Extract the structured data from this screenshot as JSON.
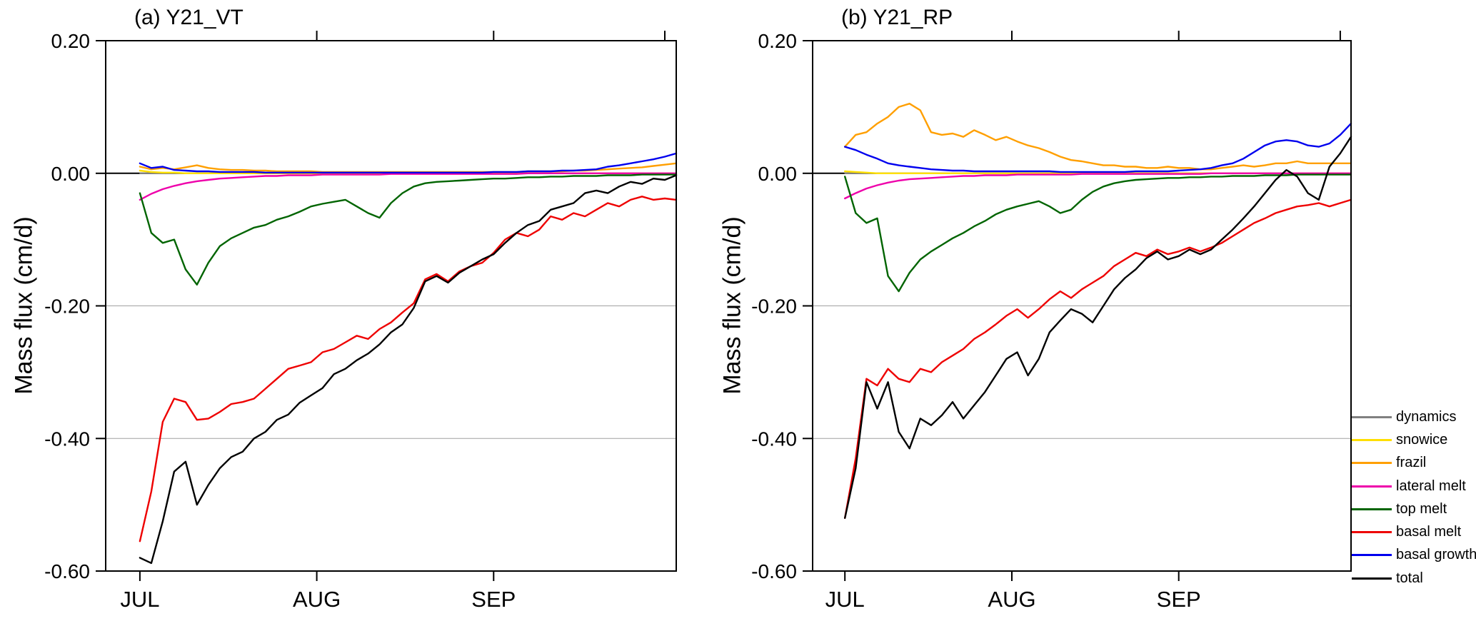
{
  "figure": {
    "background": "#ffffff",
    "legend_position": "right"
  },
  "legend": {
    "items": [
      {
        "label": "dynamics",
        "color": "#808080"
      },
      {
        "label": "snowice",
        "color": "#ffdf00"
      },
      {
        "label": "frazil",
        "color": "#ff9f00"
      },
      {
        "label": "lateral melt",
        "color": "#ee00aa"
      },
      {
        "label": "top melt",
        "color": "#006400"
      },
      {
        "label": "basal melt",
        "color": "#ee0000"
      },
      {
        "label": "basal growth",
        "color": "#0000ee"
      },
      {
        "label": "total",
        "color": "#000000"
      }
    ]
  },
  "chart_data": [
    {
      "type": "line",
      "title": "(a) Y21_VT",
      "ylabel": "Mass flux (cm/d)",
      "xlabel": "",
      "ylim": [
        -0.6,
        0.2
      ],
      "yticks": [
        0.2,
        0.0,
        -0.2,
        -0.4,
        -0.6
      ],
      "ytick_labels": [
        "0.20",
        "0.00",
        "-0.20",
        "-0.40",
        "-0.60"
      ],
      "xlim_days": [
        -6,
        94
      ],
      "xticks": [
        {
          "day": 0,
          "label": "JUL"
        },
        {
          "day": 31,
          "label": "AUG"
        },
        {
          "day": 62,
          "label": "SEP"
        }
      ],
      "top_ticks_days": [
        31,
        62,
        92
      ],
      "zero_line": true,
      "gridlines": [
        -0.2,
        -0.4
      ],
      "x_days": [
        0,
        2,
        4,
        6,
        8,
        10,
        12,
        14,
        16,
        18,
        20,
        22,
        24,
        26,
        28,
        30,
        32,
        34,
        36,
        38,
        40,
        42,
        44,
        46,
        48,
        50,
        52,
        54,
        56,
        58,
        60,
        62,
        64,
        66,
        68,
        70,
        72,
        74,
        76,
        78,
        80,
        82,
        84,
        86,
        88,
        90,
        92,
        94
      ],
      "series": [
        {
          "name": "dynamics",
          "values": [
            0.0,
            0.0,
            0.0,
            0.0,
            0.0,
            0.0,
            0.0,
            0.0,
            0.0,
            0.0,
            0.0,
            0.0,
            0.0,
            0.0,
            0.0,
            0.0,
            0.0,
            0.0,
            0.0,
            0.0,
            0.0,
            0.0,
            0.0,
            0.0,
            0.0,
            0.0,
            0.0,
            0.0,
            0.0,
            0.0,
            0.0,
            0.0,
            0.0,
            0.0,
            0.0,
            0.0,
            0.0,
            0.0,
            0.0,
            0.0,
            0.0,
            0.0,
            0.0,
            0.0,
            0.0,
            0.0,
            0.0,
            0.0
          ]
        },
        {
          "name": "snowice",
          "values": [
            0.004,
            0.002,
            0.001,
            0.001,
            0.0,
            0.0,
            0.0,
            0.0,
            0.0,
            0.0,
            0.0,
            0.0,
            0.0,
            0.0,
            0.0,
            0.0,
            0.0,
            0.0,
            0.0,
            0.0,
            0.0,
            0.0,
            0.0,
            0.0,
            0.0,
            0.0,
            0.0,
            0.0,
            0.0,
            0.0,
            0.0,
            0.0,
            0.0,
            0.0,
            0.0,
            0.0,
            0.0,
            0.0,
            0.0,
            0.0,
            0.0,
            0.0,
            0.0,
            0.0,
            0.0,
            0.0,
            0.0,
            0.0
          ]
        },
        {
          "name": "frazil",
          "values": [
            0.01,
            0.006,
            0.008,
            0.006,
            0.009,
            0.012,
            0.008,
            0.006,
            0.005,
            0.005,
            0.004,
            0.004,
            0.003,
            0.003,
            0.003,
            0.003,
            0.002,
            0.002,
            0.002,
            0.002,
            0.002,
            0.002,
            0.002,
            0.002,
            0.002,
            0.002,
            0.002,
            0.002,
            0.002,
            0.002,
            0.002,
            0.002,
            0.002,
            0.002,
            0.003,
            0.003,
            0.003,
            0.003,
            0.004,
            0.004,
            0.005,
            0.006,
            0.007,
            0.008,
            0.009,
            0.011,
            0.013,
            0.015
          ]
        },
        {
          "name": "lateral melt",
          "values": [
            -0.04,
            -0.031,
            -0.024,
            -0.019,
            -0.015,
            -0.012,
            -0.01,
            -0.008,
            -0.007,
            -0.006,
            -0.005,
            -0.004,
            -0.004,
            -0.003,
            -0.003,
            -0.003,
            -0.002,
            -0.002,
            -0.002,
            -0.002,
            -0.002,
            -0.002,
            -0.001,
            -0.001,
            -0.001,
            -0.001,
            -0.001,
            -0.001,
            -0.001,
            -0.001,
            -0.001,
            -0.001,
            -0.001,
            -0.001,
            0.0,
            0.0,
            0.0,
            0.0,
            0.0,
            0.0,
            0.0,
            0.0,
            0.0,
            0.0,
            0.0,
            0.0,
            0.0,
            0.0
          ]
        },
        {
          "name": "top melt",
          "values": [
            -0.03,
            -0.09,
            -0.105,
            -0.1,
            -0.145,
            -0.168,
            -0.135,
            -0.11,
            -0.098,
            -0.09,
            -0.082,
            -0.078,
            -0.07,
            -0.065,
            -0.058,
            -0.05,
            -0.046,
            -0.043,
            -0.04,
            -0.05,
            -0.06,
            -0.067,
            -0.045,
            -0.03,
            -0.02,
            -0.015,
            -0.013,
            -0.012,
            -0.011,
            -0.01,
            -0.009,
            -0.008,
            -0.008,
            -0.007,
            -0.006,
            -0.006,
            -0.005,
            -0.005,
            -0.004,
            -0.004,
            -0.004,
            -0.003,
            -0.003,
            -0.003,
            -0.002,
            -0.002,
            -0.002,
            -0.002
          ]
        },
        {
          "name": "basal melt",
          "values": [
            -0.555,
            -0.48,
            -0.375,
            -0.34,
            -0.345,
            -0.372,
            -0.37,
            -0.36,
            -0.348,
            -0.345,
            -0.34,
            -0.325,
            -0.31,
            -0.295,
            -0.29,
            -0.285,
            -0.27,
            -0.265,
            -0.255,
            -0.245,
            -0.25,
            -0.235,
            -0.225,
            -0.21,
            -0.196,
            -0.16,
            -0.152,
            -0.163,
            -0.148,
            -0.14,
            -0.135,
            -0.12,
            -0.1,
            -0.09,
            -0.095,
            -0.085,
            -0.065,
            -0.07,
            -0.06,
            -0.065,
            -0.055,
            -0.045,
            -0.05,
            -0.04,
            -0.035,
            -0.04,
            -0.038,
            -0.04
          ]
        },
        {
          "name": "basal growth",
          "values": [
            0.015,
            0.008,
            0.01,
            0.005,
            0.004,
            0.003,
            0.003,
            0.002,
            0.002,
            0.002,
            0.002,
            0.001,
            0.001,
            0.001,
            0.001,
            0.001,
            0.001,
            0.001,
            0.001,
            0.001,
            0.001,
            0.001,
            0.001,
            0.001,
            0.001,
            0.001,
            0.001,
            0.001,
            0.001,
            0.001,
            0.001,
            0.002,
            0.002,
            0.002,
            0.003,
            0.003,
            0.003,
            0.004,
            0.004,
            0.005,
            0.006,
            0.01,
            0.012,
            0.015,
            0.018,
            0.021,
            0.025,
            0.03
          ]
        },
        {
          "name": "total",
          "values": [
            -0.58,
            -0.588,
            -0.525,
            -0.45,
            -0.435,
            -0.5,
            -0.47,
            -0.445,
            -0.428,
            -0.42,
            -0.4,
            -0.39,
            -0.372,
            -0.364,
            -0.346,
            -0.335,
            -0.324,
            -0.303,
            -0.295,
            -0.282,
            -0.272,
            -0.258,
            -0.24,
            -0.228,
            -0.203,
            -0.163,
            -0.155,
            -0.165,
            -0.15,
            -0.14,
            -0.13,
            -0.122,
            -0.105,
            -0.09,
            -0.078,
            -0.072,
            -0.055,
            -0.05,
            -0.045,
            -0.03,
            -0.026,
            -0.03,
            -0.02,
            -0.013,
            -0.016,
            -0.008,
            -0.01,
            -0.003
          ]
        }
      ]
    },
    {
      "type": "line",
      "title": "(b) Y21_RP",
      "ylabel": "Mass flux (cm/d)",
      "xlabel": "",
      "ylim": [
        -0.6,
        0.2
      ],
      "yticks": [
        0.2,
        0.0,
        -0.2,
        -0.4,
        -0.6
      ],
      "ytick_labels": [
        "0.20",
        "0.00",
        "-0.20",
        "-0.40",
        "-0.60"
      ],
      "xlim_days": [
        -6,
        94
      ],
      "xticks": [
        {
          "day": 0,
          "label": "JUL"
        },
        {
          "day": 31,
          "label": "AUG"
        },
        {
          "day": 62,
          "label": "SEP"
        }
      ],
      "top_ticks_days": [
        31,
        62,
        92
      ],
      "zero_line": true,
      "gridlines": [
        -0.2,
        -0.4
      ],
      "x_days": [
        0,
        2,
        4,
        6,
        8,
        10,
        12,
        14,
        16,
        18,
        20,
        22,
        24,
        26,
        28,
        30,
        32,
        34,
        36,
        38,
        40,
        42,
        44,
        46,
        48,
        50,
        52,
        54,
        56,
        58,
        60,
        62,
        64,
        66,
        68,
        70,
        72,
        74,
        76,
        78,
        80,
        82,
        84,
        86,
        88,
        90,
        92,
        94
      ],
      "series": [
        {
          "name": "dynamics",
          "values": [
            0.0,
            0.0,
            0.0,
            0.0,
            0.0,
            0.0,
            0.0,
            0.0,
            0.0,
            0.0,
            0.0,
            0.0,
            0.0,
            0.0,
            0.0,
            0.0,
            0.0,
            0.0,
            0.0,
            0.0,
            0.0,
            0.0,
            0.0,
            0.0,
            0.0,
            0.0,
            0.0,
            0.0,
            0.0,
            0.0,
            0.0,
            0.0,
            0.0,
            0.0,
            0.0,
            0.0,
            0.0,
            0.0,
            0.0,
            0.0,
            0.0,
            0.0,
            0.0,
            0.0,
            0.0,
            0.0,
            0.0,
            0.0
          ]
        },
        {
          "name": "snowice",
          "values": [
            0.003,
            0.002,
            0.001,
            0.0,
            0.0,
            0.0,
            0.0,
            0.0,
            0.0,
            0.0,
            0.0,
            0.0,
            0.0,
            0.0,
            0.0,
            0.0,
            0.0,
            0.0,
            0.0,
            0.0,
            0.0,
            0.0,
            0.0,
            0.0,
            0.0,
            0.0,
            0.0,
            0.0,
            0.0,
            0.0,
            0.0,
            0.0,
            0.0,
            0.0,
            0.0,
            0.0,
            0.0,
            0.0,
            0.0,
            0.0,
            0.0,
            0.0,
            0.0,
            0.0,
            0.0,
            0.0,
            0.0,
            0.0
          ]
        },
        {
          "name": "frazil",
          "values": [
            0.04,
            0.058,
            0.062,
            0.075,
            0.085,
            0.1,
            0.105,
            0.095,
            0.062,
            0.058,
            0.06,
            0.055,
            0.065,
            0.058,
            0.05,
            0.055,
            0.048,
            0.042,
            0.038,
            0.032,
            0.025,
            0.02,
            0.018,
            0.015,
            0.012,
            0.012,
            0.01,
            0.01,
            0.008,
            0.008,
            0.01,
            0.008,
            0.008,
            0.006,
            0.006,
            0.008,
            0.01,
            0.012,
            0.01,
            0.012,
            0.015,
            0.015,
            0.018,
            0.015,
            0.015,
            0.015,
            0.015,
            0.015
          ]
        },
        {
          "name": "lateral melt",
          "values": [
            -0.038,
            -0.03,
            -0.023,
            -0.018,
            -0.014,
            -0.011,
            -0.009,
            -0.008,
            -0.007,
            -0.006,
            -0.005,
            -0.004,
            -0.004,
            -0.003,
            -0.003,
            -0.003,
            -0.002,
            -0.002,
            -0.002,
            -0.002,
            -0.002,
            -0.002,
            -0.001,
            -0.001,
            -0.001,
            -0.001,
            -0.001,
            -0.001,
            -0.001,
            -0.001,
            -0.001,
            -0.001,
            -0.001,
            -0.001,
            0.0,
            0.0,
            0.0,
            0.0,
            0.0,
            0.0,
            0.0,
            0.0,
            0.0,
            0.0,
            0.0,
            0.0,
            0.0,
            0.0
          ]
        },
        {
          "name": "top melt",
          "values": [
            -0.005,
            -0.06,
            -0.075,
            -0.068,
            -0.155,
            -0.178,
            -0.15,
            -0.13,
            -0.118,
            -0.108,
            -0.098,
            -0.09,
            -0.08,
            -0.072,
            -0.062,
            -0.055,
            -0.05,
            -0.046,
            -0.042,
            -0.05,
            -0.06,
            -0.055,
            -0.04,
            -0.028,
            -0.02,
            -0.015,
            -0.012,
            -0.01,
            -0.009,
            -0.008,
            -0.007,
            -0.007,
            -0.006,
            -0.006,
            -0.005,
            -0.005,
            -0.004,
            -0.004,
            -0.004,
            -0.003,
            -0.003,
            -0.003,
            -0.002,
            -0.002,
            -0.002,
            -0.002,
            -0.002,
            -0.002
          ]
        },
        {
          "name": "basal melt",
          "values": [
            -0.52,
            -0.43,
            -0.31,
            -0.32,
            -0.295,
            -0.31,
            -0.315,
            -0.295,
            -0.3,
            -0.285,
            -0.275,
            -0.265,
            -0.25,
            -0.24,
            -0.228,
            -0.215,
            -0.205,
            -0.218,
            -0.205,
            -0.19,
            -0.178,
            -0.188,
            -0.175,
            -0.165,
            -0.155,
            -0.14,
            -0.13,
            -0.12,
            -0.125,
            -0.115,
            -0.122,
            -0.118,
            -0.112,
            -0.118,
            -0.112,
            -0.105,
            -0.095,
            -0.085,
            -0.075,
            -0.068,
            -0.06,
            -0.055,
            -0.05,
            -0.048,
            -0.045,
            -0.05,
            -0.045,
            -0.04
          ]
        },
        {
          "name": "basal growth",
          "values": [
            0.04,
            0.035,
            0.028,
            0.022,
            0.015,
            0.012,
            0.01,
            0.008,
            0.006,
            0.005,
            0.004,
            0.004,
            0.003,
            0.003,
            0.003,
            0.003,
            0.003,
            0.003,
            0.003,
            0.003,
            0.002,
            0.002,
            0.002,
            0.002,
            0.002,
            0.002,
            0.002,
            0.003,
            0.003,
            0.003,
            0.003,
            0.004,
            0.005,
            0.006,
            0.008,
            0.012,
            0.015,
            0.022,
            0.032,
            0.042,
            0.048,
            0.05,
            0.048,
            0.042,
            0.04,
            0.045,
            0.058,
            0.075
          ]
        },
        {
          "name": "total",
          "values": [
            -0.52,
            -0.445,
            -0.315,
            -0.355,
            -0.315,
            -0.39,
            -0.415,
            -0.37,
            -0.38,
            -0.365,
            -0.345,
            -0.37,
            -0.35,
            -0.33,
            -0.305,
            -0.28,
            -0.27,
            -0.305,
            -0.28,
            -0.24,
            -0.222,
            -0.205,
            -0.212,
            -0.225,
            -0.2,
            -0.175,
            -0.158,
            -0.145,
            -0.128,
            -0.118,
            -0.13,
            -0.125,
            -0.115,
            -0.122,
            -0.115,
            -0.1,
            -0.085,
            -0.068,
            -0.05,
            -0.03,
            -0.01,
            0.005,
            -0.005,
            -0.03,
            -0.04,
            0.01,
            0.03,
            0.055
          ]
        }
      ]
    }
  ]
}
